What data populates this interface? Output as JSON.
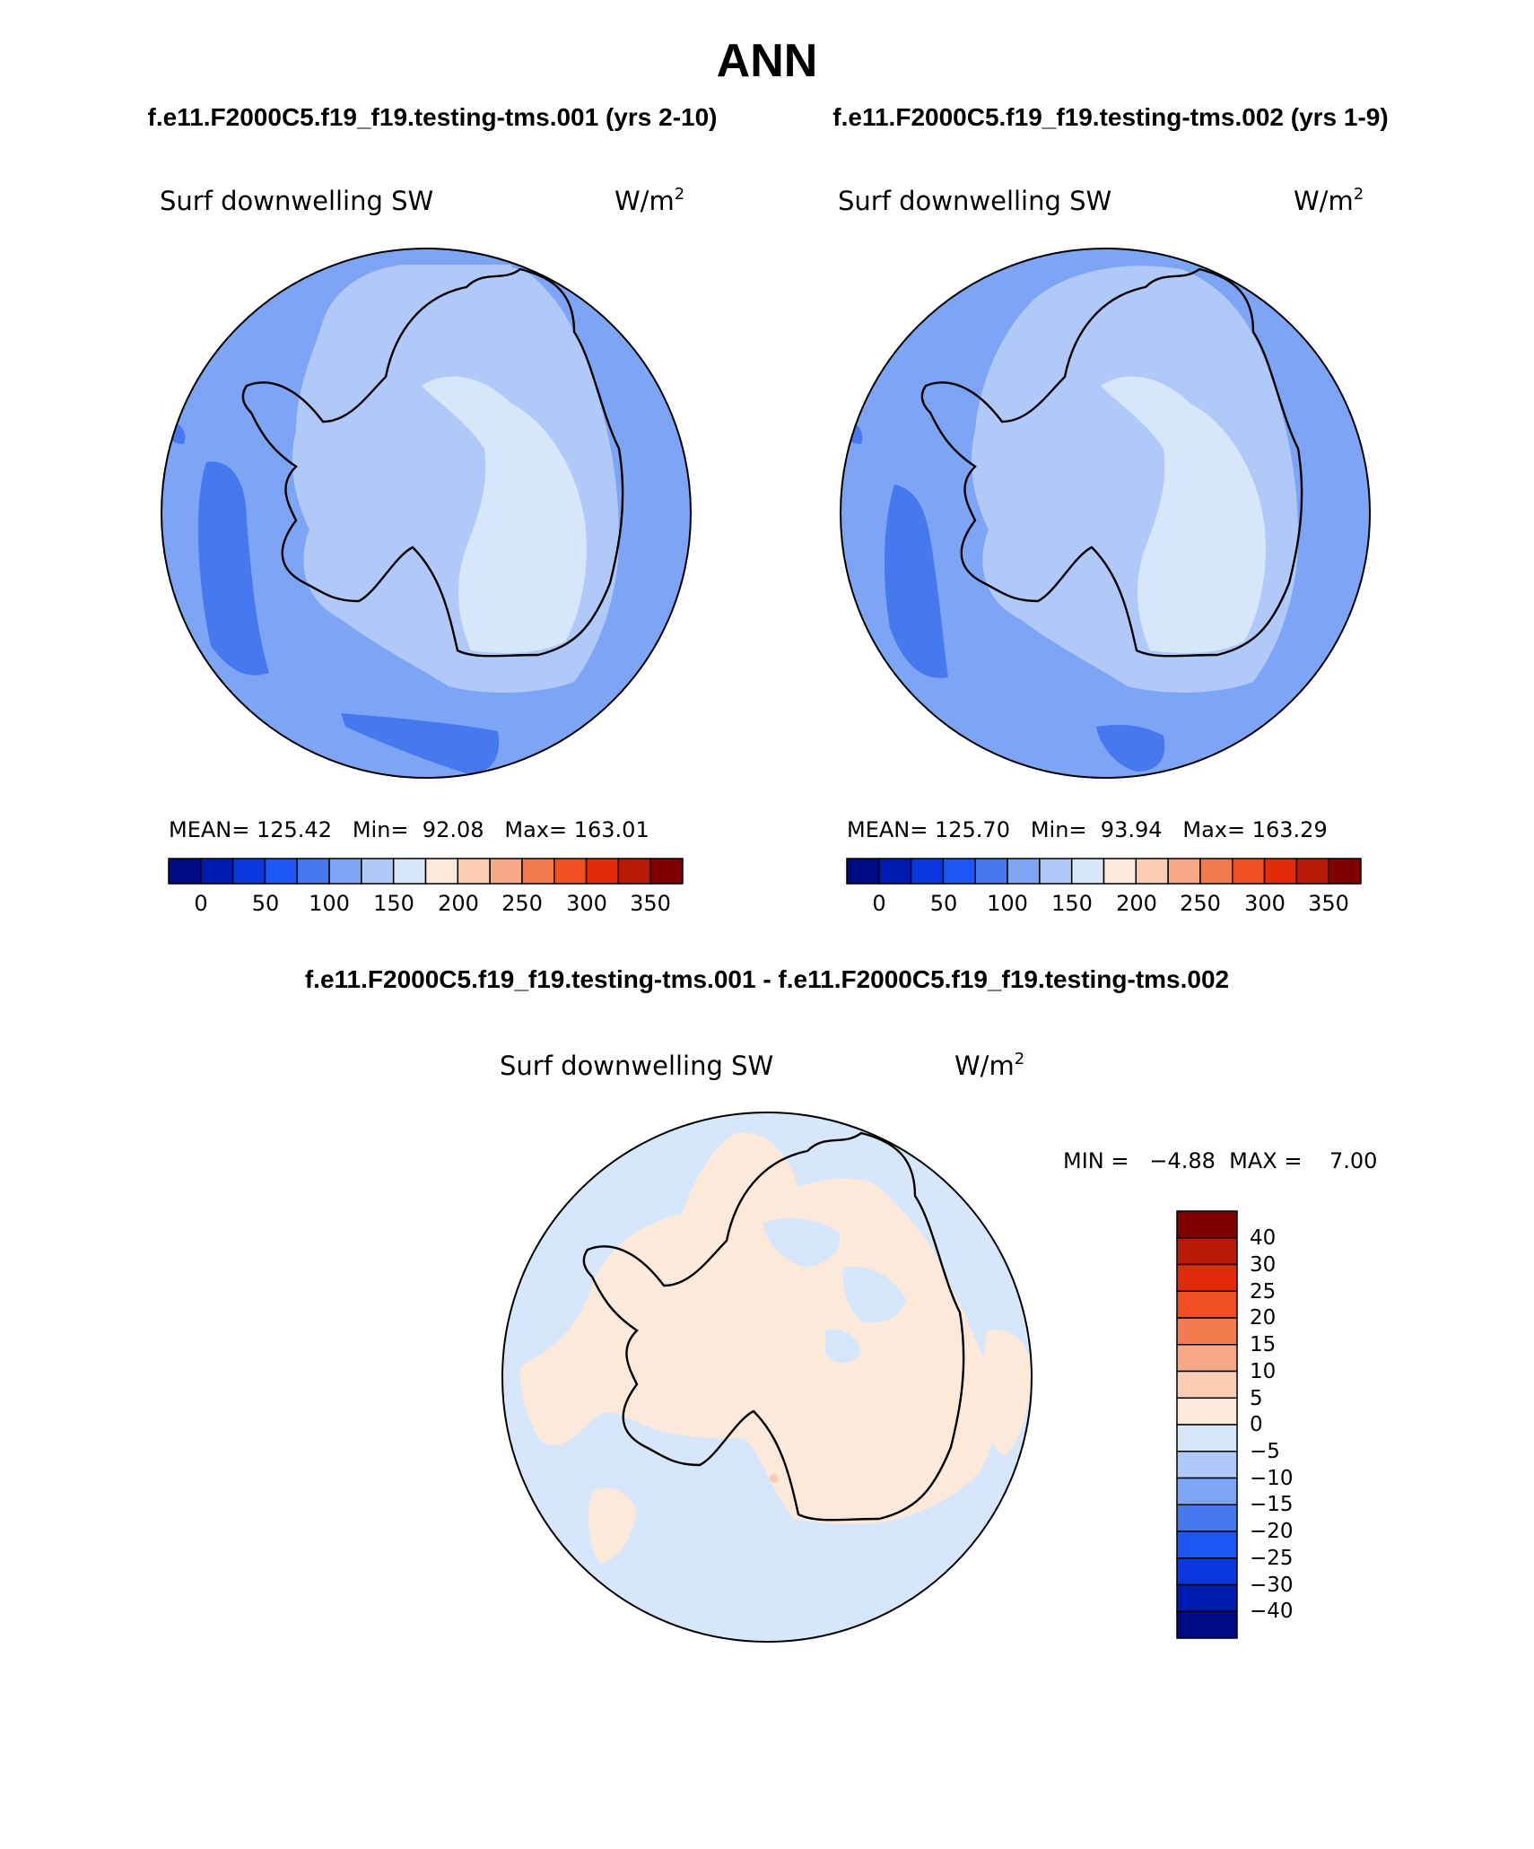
{
  "page_title": "ANN",
  "panels": [
    {
      "case_title": "f.e11.F2000C5.f19_f19.testing-tms.001 (yrs 2-10)",
      "variable": "Surf downwelling SW",
      "units": "W/m",
      "units_sup": "2",
      "stats_text": "MEAN= 125.42   Min=  92.08   Max= 163.01",
      "stats": {
        "mean": 125.42,
        "min": 92.08,
        "max": 163.01
      }
    },
    {
      "case_title": "f.e11.F2000C5.f19_f19.testing-tms.002 (yrs 1-9)",
      "variable": "Surf downwelling SW",
      "units": "W/m",
      "units_sup": "2",
      "stats_text": "MEAN= 125.70   Min=  93.94   Max= 163.29",
      "stats": {
        "mean": 125.7,
        "min": 93.94,
        "max": 163.29
      }
    }
  ],
  "diff_panel": {
    "title": "f.e11.F2000C5.f19_f19.testing-tms.001 - f.e11.F2000C5.f19_f19.testing-tms.002",
    "variable": "Surf downwelling SW",
    "units": "W/m",
    "units_sup": "2",
    "minmax_text": "MIN =   −4.88  MAX =    7.00",
    "min": -4.88,
    "max": 7.0
  },
  "main_colorbar": {
    "colors": [
      "#000a82",
      "#0019b0",
      "#0a37e0",
      "#1e56f5",
      "#4678f0",
      "#7ea5f5",
      "#b0c9f8",
      "#d6e7fb",
      "#fde9da",
      "#fcccb4",
      "#f7a886",
      "#f47a50",
      "#f04f22",
      "#e22b0a",
      "#b81a06",
      "#810000"
    ],
    "tick_labels": [
      "0",
      "50",
      "100",
      "150",
      "200",
      "250",
      "300",
      "350"
    ]
  },
  "diff_colorbar": {
    "colors": [
      "#810000",
      "#b81a06",
      "#e22b0a",
      "#f04f22",
      "#f47a50",
      "#f7a886",
      "#fcccb4",
      "#fde9da",
      "#d6e7fb",
      "#b0c9f8",
      "#7ea5f5",
      "#4678f0",
      "#1e56f5",
      "#0a37e0",
      "#0019b0",
      "#000a82"
    ],
    "tick_labels": [
      "40",
      "30",
      "25",
      "20",
      "15",
      "10",
      "5",
      "0",
      "−5",
      "−10",
      "−15",
      "−20",
      "−25",
      "−30",
      "−40"
    ]
  },
  "map_colors": {
    "ocean_mid": "#7ea5f5",
    "ocean_dark": "#4678f0",
    "ring_light": "#b0c9f8",
    "interior": "#d6e7fb",
    "diff_neg": "#d6e7fb",
    "diff_pos": "#fde9da",
    "diff_hot": "#fcccb4"
  }
}
